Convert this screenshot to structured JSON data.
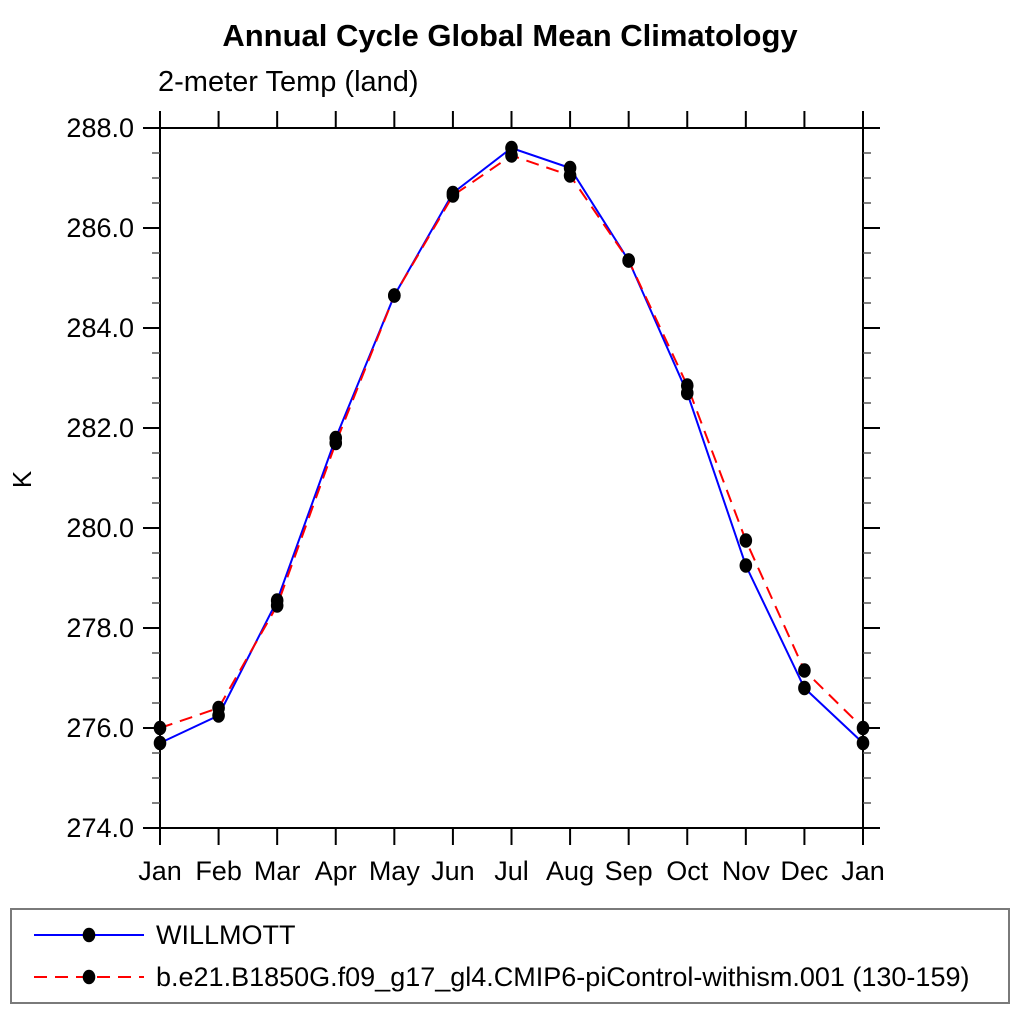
{
  "chart_data": {
    "type": "line",
    "title": "Annual Cycle Global Mean Climatology",
    "subtitle": "2-meter Temp (land)",
    "ylabel": "K",
    "xlabel": "",
    "categories": [
      "Jan",
      "Feb",
      "Mar",
      "Apr",
      "May",
      "Jun",
      "Jul",
      "Aug",
      "Sep",
      "Oct",
      "Nov",
      "Dec",
      "Jan"
    ],
    "ylim": [
      274.0,
      288.0
    ],
    "ytick_major": 2.0,
    "ytick_minor": 0.5,
    "grid": false,
    "legend_position": "bottom",
    "marker_color": "#000000",
    "axis_color": "#000000",
    "series": [
      {
        "name": "WILLMOTT",
        "color": "#0000ff",
        "style": "solid",
        "values": [
          275.7,
          276.25,
          278.55,
          281.8,
          284.65,
          286.7,
          287.6,
          287.2,
          285.35,
          282.7,
          279.25,
          276.8,
          275.7
        ]
      },
      {
        "name": "b.e21.B1850G.f09_g17_gl4.CMIP6-piControl-withism.001 (130-159)",
        "color": "#ff0000",
        "style": "dashed",
        "values": [
          276.0,
          276.4,
          278.45,
          281.7,
          284.65,
          286.65,
          287.45,
          287.05,
          285.35,
          282.85,
          279.75,
          277.15,
          276.0
        ]
      }
    ]
  }
}
